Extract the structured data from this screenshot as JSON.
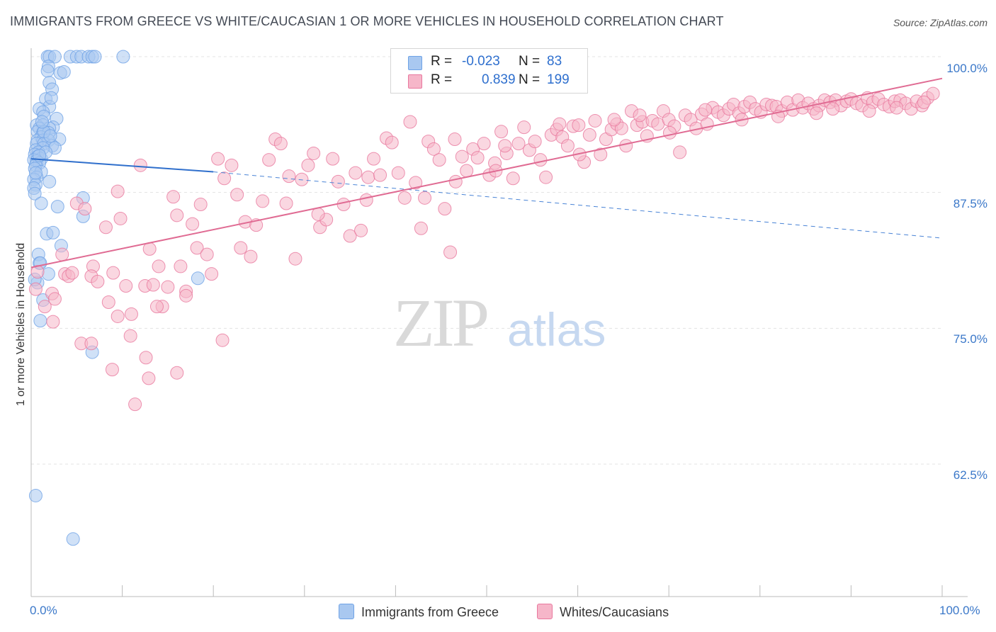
{
  "title": "IMMIGRANTS FROM GREECE VS WHITE/CAUCASIAN 1 OR MORE VEHICLES IN HOUSEHOLD CORRELATION CHART",
  "source": "Source: ZipAtlas.com",
  "watermark": {
    "zip": "ZIP",
    "atlas": "atlas"
  },
  "legend_stats": [
    {
      "r_label": "R =",
      "r_value": "-0.023",
      "n_label": "N =",
      "n_value": "83",
      "color": "#a9c8f0"
    },
    {
      "r_label": "R =",
      "r_value": "0.839",
      "n_label": "N =",
      "n_value": "199",
      "color": "#f6b6c9"
    }
  ],
  "bottom_legend": [
    {
      "label": "Immigrants from Greece",
      "color": "#a9c8f0"
    },
    {
      "label": "Whites/Caucasians",
      "color": "#f6b6c9"
    }
  ],
  "chart_data": {
    "type": "scatter",
    "xlabel": "",
    "ylabel": "1 or more Vehicles in Household",
    "x_tick_labels": [
      "0.0%",
      "100.0%"
    ],
    "y_tick_labels": [
      "100.0%",
      "87.5%",
      "75.0%",
      "62.5%"
    ],
    "xlim": [
      0,
      100
    ],
    "ylim": [
      50,
      101
    ],
    "grid": true,
    "series": [
      {
        "name": "Immigrants from Greece",
        "color": "#6fa3e6",
        "fill": "#a9c8f0",
        "trend": {
          "x": [
            0,
            20
          ],
          "y": [
            90.6,
            89.4
          ],
          "dashed_extension": [
            100,
            83.3
          ]
        },
        "points": [
          [
            1.8,
            100
          ],
          [
            2.0,
            100
          ],
          [
            2.6,
            100
          ],
          [
            4.3,
            100
          ],
          [
            5.0,
            100
          ],
          [
            5.5,
            100
          ],
          [
            6.3,
            100
          ],
          [
            6.7,
            100
          ],
          [
            7.0,
            100
          ],
          [
            10.1,
            100
          ],
          [
            1.9,
            99.1
          ],
          [
            1.8,
            98.7
          ],
          [
            3.2,
            98.5
          ],
          [
            3.6,
            98.6
          ],
          [
            2.0,
            97.6
          ],
          [
            2.3,
            97.0
          ],
          [
            1.6,
            96.1
          ],
          [
            2.0,
            95.4
          ],
          [
            0.9,
            95.2
          ],
          [
            1.3,
            94.9
          ],
          [
            1.4,
            94.5
          ],
          [
            2.8,
            94.3
          ],
          [
            0.6,
            93.7
          ],
          [
            1.3,
            93.7
          ],
          [
            0.9,
            93.4
          ],
          [
            2.4,
            93.5
          ],
          [
            2.0,
            93.4
          ],
          [
            0.7,
            93.1
          ],
          [
            1.3,
            93.0
          ],
          [
            1.9,
            93.0
          ],
          [
            1.1,
            92.6
          ],
          [
            3.1,
            92.4
          ],
          [
            0.7,
            92.3
          ],
          [
            1.3,
            92.3
          ],
          [
            1.9,
            92.3
          ],
          [
            0.6,
            92.0
          ],
          [
            1.4,
            92.0
          ],
          [
            2.3,
            91.8
          ],
          [
            2.6,
            91.6
          ],
          [
            1.3,
            91.6
          ],
          [
            0.5,
            91.4
          ],
          [
            0.8,
            91.2
          ],
          [
            0.4,
            91.0
          ],
          [
            0.7,
            90.8
          ],
          [
            1.1,
            90.6
          ],
          [
            0.3,
            90.5
          ],
          [
            0.6,
            90.4
          ],
          [
            0.9,
            90.2
          ],
          [
            0.5,
            90.0
          ],
          [
            0.4,
            89.7
          ],
          [
            1.1,
            89.4
          ],
          [
            0.6,
            88.9
          ],
          [
            0.3,
            88.7
          ],
          [
            2.0,
            88.5
          ],
          [
            0.5,
            88.2
          ],
          [
            0.3,
            87.9
          ],
          [
            0.4,
            87.4
          ],
          [
            5.7,
            87.0
          ],
          [
            1.1,
            86.5
          ],
          [
            2.9,
            86.2
          ],
          [
            5.7,
            85.3
          ],
          [
            1.7,
            83.7
          ],
          [
            2.4,
            83.8
          ],
          [
            3.3,
            82.6
          ],
          [
            0.8,
            81.8
          ],
          [
            0.9,
            81.0
          ],
          [
            1.0,
            81.0
          ],
          [
            1.9,
            80.0
          ],
          [
            18.3,
            79.6
          ],
          [
            0.7,
            79.2
          ],
          [
            0.4,
            79.5
          ],
          [
            1.3,
            77.6
          ],
          [
            1.0,
            75.7
          ],
          [
            6.7,
            72.8
          ],
          [
            0.5,
            59.6
          ],
          [
            4.6,
            55.6
          ],
          [
            1.4,
            93.1
          ],
          [
            2.1,
            92.7
          ],
          [
            1.6,
            91.2
          ],
          [
            0.9,
            90.9
          ],
          [
            0.5,
            89.3
          ],
          [
            2.2,
            96.2
          ],
          [
            1.2,
            94.0
          ]
        ]
      },
      {
        "name": "Whites/Caucasians",
        "color": "#e8789e",
        "fill": "#f6b6c9",
        "trend": {
          "x": [
            0,
            100
          ],
          "y": [
            80.6,
            98.0
          ]
        },
        "points": [
          [
            2.3,
            78.2
          ],
          [
            2.6,
            77.7
          ],
          [
            3.4,
            81.8
          ],
          [
            3.7,
            80.0
          ],
          [
            4.1,
            79.8
          ],
          [
            4.5,
            80.1
          ],
          [
            5.0,
            86.5
          ],
          [
            5.9,
            86.0
          ],
          [
            6.8,
            80.7
          ],
          [
            6.6,
            79.8
          ],
          [
            7.3,
            79.3
          ],
          [
            8.2,
            84.3
          ],
          [
            8.5,
            77.4
          ],
          [
            9.0,
            80.1
          ],
          [
            9.5,
            87.6
          ],
          [
            9.8,
            85.1
          ],
          [
            10.4,
            78.9
          ],
          [
            11.0,
            76.3
          ],
          [
            12.0,
            90.0
          ],
          [
            12.5,
            78.9
          ],
          [
            13.0,
            82.3
          ],
          [
            13.4,
            79.0
          ],
          [
            14.0,
            80.7
          ],
          [
            14.4,
            77.0
          ],
          [
            15.0,
            78.8
          ],
          [
            15.6,
            87.1
          ],
          [
            16.0,
            85.4
          ],
          [
            16.4,
            80.7
          ],
          [
            17.0,
            78.4
          ],
          [
            17.7,
            84.6
          ],
          [
            18.2,
            82.4
          ],
          [
            18.6,
            86.4
          ],
          [
            19.3,
            81.8
          ],
          [
            19.8,
            80.0
          ],
          [
            20.5,
            90.6
          ],
          [
            21.2,
            88.8
          ],
          [
            22.0,
            90.0
          ],
          [
            22.6,
            87.3
          ],
          [
            23.5,
            84.8
          ],
          [
            24.1,
            81.6
          ],
          [
            24.7,
            84.5
          ],
          [
            25.4,
            86.7
          ],
          [
            26.1,
            90.5
          ],
          [
            26.8,
            92.4
          ],
          [
            27.4,
            92.0
          ],
          [
            28.3,
            89.0
          ],
          [
            29.0,
            81.4
          ],
          [
            29.7,
            88.7
          ],
          [
            30.4,
            90.0
          ],
          [
            31.0,
            91.1
          ],
          [
            31.7,
            84.3
          ],
          [
            32.4,
            85.0
          ],
          [
            33.1,
            90.6
          ],
          [
            33.7,
            88.5
          ],
          [
            34.3,
            86.4
          ],
          [
            35.0,
            83.5
          ],
          [
            35.6,
            89.3
          ],
          [
            36.2,
            84.0
          ],
          [
            37.0,
            88.9
          ],
          [
            37.6,
            90.6
          ],
          [
            38.3,
            89.1
          ],
          [
            39.0,
            92.5
          ],
          [
            39.6,
            92.1
          ],
          [
            40.3,
            89.3
          ],
          [
            41.0,
            87.0
          ],
          [
            41.6,
            94.0
          ],
          [
            42.2,
            88.4
          ],
          [
            42.8,
            84.2
          ],
          [
            43.6,
            92.2
          ],
          [
            44.2,
            91.5
          ],
          [
            44.8,
            90.5
          ],
          [
            45.4,
            86.0
          ],
          [
            46.0,
            82.0
          ],
          [
            46.6,
            88.5
          ],
          [
            47.3,
            90.8
          ],
          [
            47.8,
            89.5
          ],
          [
            48.5,
            91.5
          ],
          [
            49.0,
            90.7
          ],
          [
            49.7,
            92.0
          ],
          [
            50.3,
            89.1
          ],
          [
            50.9,
            90.2
          ],
          [
            51.6,
            93.1
          ],
          [
            52.2,
            91.1
          ],
          [
            52.9,
            88.8
          ],
          [
            53.5,
            92.0
          ],
          [
            54.1,
            93.5
          ],
          [
            54.7,
            91.4
          ],
          [
            55.3,
            92.2
          ],
          [
            55.9,
            90.5
          ],
          [
            56.5,
            88.9
          ],
          [
            57.1,
            92.8
          ],
          [
            57.7,
            93.3
          ],
          [
            58.3,
            92.6
          ],
          [
            58.9,
            91.8
          ],
          [
            59.5,
            93.6
          ],
          [
            60.1,
            93.7
          ],
          [
            60.7,
            90.3
          ],
          [
            61.3,
            92.8
          ],
          [
            61.9,
            94.1
          ],
          [
            62.5,
            91.0
          ],
          [
            63.1,
            92.4
          ],
          [
            63.7,
            93.3
          ],
          [
            64.3,
            93.8
          ],
          [
            64.8,
            93.4
          ],
          [
            65.3,
            91.8
          ],
          [
            65.9,
            95.0
          ],
          [
            66.5,
            93.7
          ],
          [
            67.1,
            94.0
          ],
          [
            67.6,
            92.7
          ],
          [
            68.2,
            94.1
          ],
          [
            68.8,
            93.8
          ],
          [
            69.4,
            95.0
          ],
          [
            70.0,
            94.2
          ],
          [
            70.6,
            93.6
          ],
          [
            71.2,
            91.2
          ],
          [
            71.8,
            94.6
          ],
          [
            72.4,
            94.2
          ],
          [
            73.0,
            93.4
          ],
          [
            73.6,
            94.7
          ],
          [
            74.2,
            93.8
          ],
          [
            74.8,
            95.3
          ],
          [
            75.4,
            94.9
          ],
          [
            76.0,
            94.6
          ],
          [
            76.6,
            95.2
          ],
          [
            77.1,
            95.6
          ],
          [
            77.7,
            94.8
          ],
          [
            78.3,
            95.4
          ],
          [
            78.9,
            95.8
          ],
          [
            79.5,
            95.2
          ],
          [
            80.1,
            94.9
          ],
          [
            80.7,
            95.6
          ],
          [
            81.3,
            95.5
          ],
          [
            81.8,
            95.4
          ],
          [
            82.4,
            95.0
          ],
          [
            83.0,
            95.8
          ],
          [
            83.6,
            95.1
          ],
          [
            84.2,
            96.0
          ],
          [
            84.7,
            95.3
          ],
          [
            85.3,
            95.7
          ],
          [
            85.9,
            95.2
          ],
          [
            86.5,
            95.5
          ],
          [
            87.1,
            96.0
          ],
          [
            87.7,
            95.8
          ],
          [
            88.3,
            96.0
          ],
          [
            88.9,
            95.5
          ],
          [
            89.5,
            95.9
          ],
          [
            90.0,
            96.1
          ],
          [
            90.6,
            95.7
          ],
          [
            91.2,
            95.5
          ],
          [
            91.8,
            96.2
          ],
          [
            92.4,
            95.8
          ],
          [
            93.0,
            96.1
          ],
          [
            93.6,
            95.6
          ],
          [
            94.2,
            95.4
          ],
          [
            94.8,
            95.9
          ],
          [
            95.4,
            96.0
          ],
          [
            96.0,
            95.7
          ],
          [
            96.6,
            95.2
          ],
          [
            97.2,
            95.9
          ],
          [
            97.8,
            95.5
          ],
          [
            98.4,
            96.2
          ],
          [
            99.0,
            96.6
          ],
          [
            0.7,
            80.2
          ],
          [
            0.5,
            78.6
          ],
          [
            1.5,
            77.0
          ],
          [
            2.4,
            75.6
          ],
          [
            5.5,
            73.6
          ],
          [
            6.6,
            73.6
          ],
          [
            10.9,
            74.3
          ],
          [
            12.9,
            70.4
          ],
          [
            11.4,
            68.0
          ],
          [
            16.0,
            70.9
          ],
          [
            21.0,
            73.9
          ],
          [
            9.5,
            76.1
          ],
          [
            13.8,
            77.0
          ],
          [
            12.6,
            72.3
          ],
          [
            8.9,
            71.2
          ],
          [
            17.0,
            78.0
          ],
          [
            23.0,
            82.4
          ],
          [
            28.0,
            86.5
          ],
          [
            31.5,
            85.5
          ],
          [
            36.8,
            86.8
          ],
          [
            43.2,
            87.0
          ],
          [
            51.0,
            89.5
          ],
          [
            60.2,
            91.0
          ],
          [
            66.8,
            94.6
          ],
          [
            70.1,
            93.0
          ],
          [
            74.0,
            95.1
          ],
          [
            78.0,
            94.2
          ],
          [
            82.0,
            94.5
          ],
          [
            86.2,
            94.8
          ],
          [
            88.0,
            95.2
          ],
          [
            92.0,
            95.0
          ],
          [
            95.0,
            95.3
          ],
          [
            98.0,
            95.8
          ],
          [
            64.0,
            94.2
          ],
          [
            58.0,
            93.8
          ],
          [
            52.0,
            91.8
          ],
          [
            46.5,
            92.4
          ]
        ]
      }
    ]
  }
}
